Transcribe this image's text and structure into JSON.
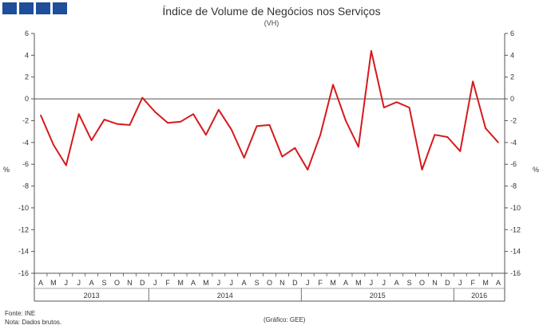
{
  "header": {
    "title": "Índice de Volume de Negócios nos Serviços",
    "subtitle": "(VH)"
  },
  "chart_data": {
    "type": "line",
    "title": "Índice de Volume de Negócios nos Serviços",
    "subtitle": "(VH)",
    "ylabel": "%",
    "xlabel": "",
    "ylim": [
      -16,
      6
    ],
    "yticks": [
      6,
      4,
      2,
      0,
      -2,
      -4,
      -6,
      -8,
      -10,
      -12,
      -14,
      -16
    ],
    "ytick_labels": [
      "6",
      "4",
      "2",
      "0",
      "-2",
      "-4",
      "-6",
      "-8",
      "-10",
      "-12",
      "-14",
      "-16"
    ],
    "months": [
      "A",
      "M",
      "J",
      "J",
      "A",
      "S",
      "O",
      "N",
      "D",
      "J",
      "F",
      "M",
      "A",
      "M",
      "J",
      "J",
      "A",
      "S",
      "O",
      "N",
      "D",
      "J",
      "F",
      "M",
      "A",
      "M",
      "J",
      "J",
      "A",
      "S",
      "O",
      "N",
      "D",
      "J",
      "F",
      "M",
      "A"
    ],
    "years": [
      {
        "label": "2013",
        "start": 0,
        "count": 9
      },
      {
        "label": "2014",
        "start": 9,
        "count": 12
      },
      {
        "label": "2015",
        "start": 21,
        "count": 12
      },
      {
        "label": "2016",
        "start": 33,
        "count": 4
      }
    ],
    "series": [
      {
        "name": "VH",
        "color": "#d7191c",
        "values": [
          -1.5,
          -4.2,
          -6.1,
          -1.4,
          -3.8,
          -1.9,
          -2.3,
          -2.4,
          0.1,
          -1.2,
          -2.2,
          -2.1,
          -1.4,
          -3.3,
          -1.0,
          -2.8,
          -5.4,
          -2.5,
          -2.4,
          -5.3,
          -4.5,
          -6.5,
          -3.3,
          1.3,
          -2.0,
          -4.4,
          4.4,
          -0.8,
          -0.3,
          -0.8,
          -6.5,
          -3.3,
          -3.5,
          -4.8,
          1.6,
          -2.7,
          -4.0
        ]
      }
    ],
    "grid": false,
    "zero_line": true
  },
  "footer": {
    "source": "Fonte: INE",
    "note": "Nota: Dados brutos.",
    "credit": "(Gráfico: GEE)"
  },
  "colors": {
    "brand_blocks": "#1f4e9a",
    "series_line": "#d7191c",
    "axis": "#555555"
  }
}
